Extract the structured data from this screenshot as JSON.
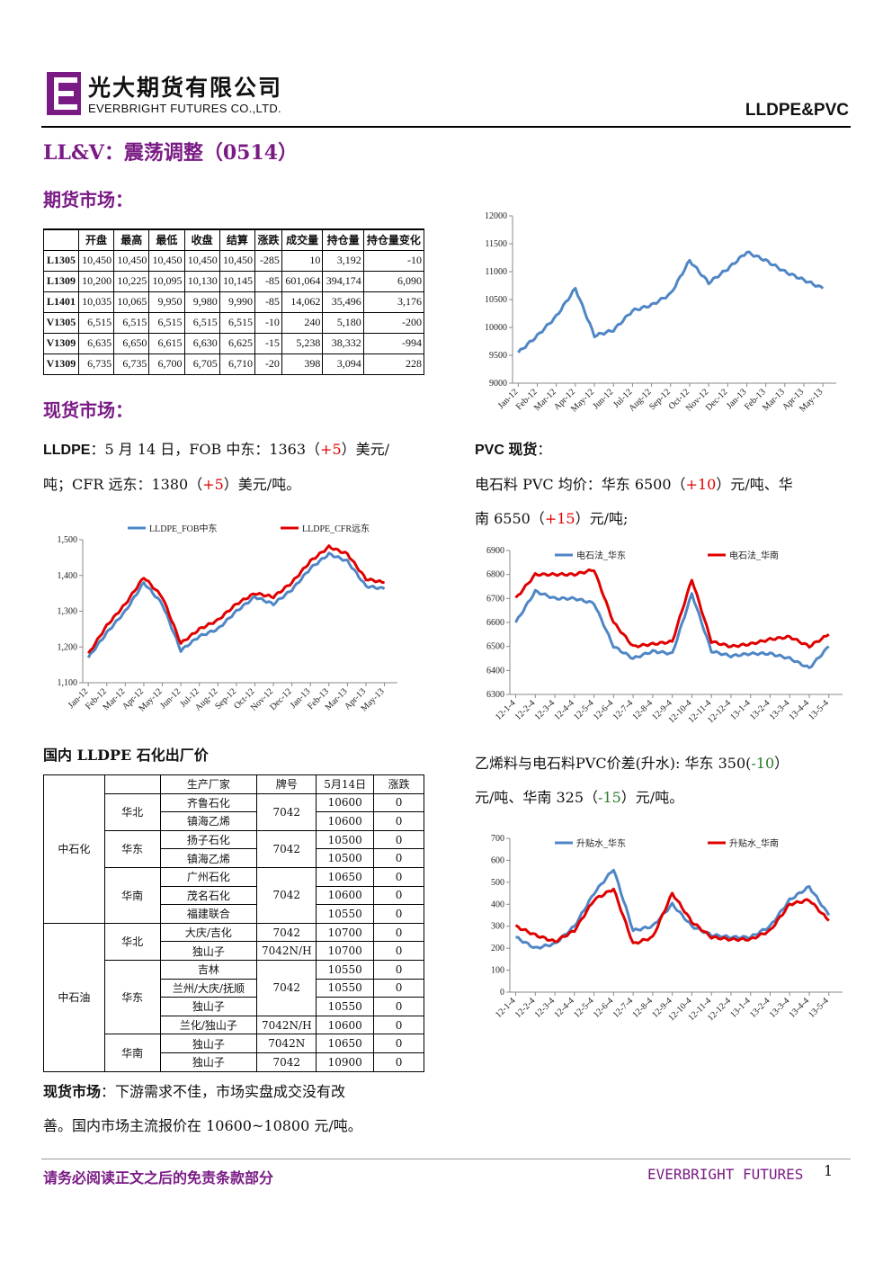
{
  "header": {
    "company_cn": "光大期货有限公司",
    "company_en": "EVERBRIGHT FUTURES CO.,LTD.",
    "product": "LLDPE&PVC"
  },
  "title": "LL&V：震荡调整（0514）",
  "futures": {
    "section_title": "期货市场：",
    "columns": [
      "",
      "开盘",
      "最高",
      "最低",
      "收盘",
      "结算",
      "涨跌",
      "成交量",
      "持仓量",
      "持仓量变化"
    ],
    "rows": [
      [
        "L1305",
        "10,450",
        "10,450",
        "10,450",
        "10,450",
        "10,450",
        "-285",
        "10",
        "3,192",
        "-10"
      ],
      [
        "L1309",
        "10,200",
        "10,225",
        "10,095",
        "10,130",
        "10,145",
        "-85",
        "601,064",
        "394,174",
        "6,090"
      ],
      [
        "L1401",
        "10,035",
        "10,065",
        "9,950",
        "9,980",
        "9,990",
        "-85",
        "14,062",
        "35,496",
        "3,176"
      ],
      [
        "V1305",
        "6,515",
        "6,515",
        "6,515",
        "6,515",
        "6,515",
        "-10",
        "240",
        "5,180",
        "-200"
      ],
      [
        "V1309",
        "6,635",
        "6,650",
        "6,615",
        "6,630",
        "6,625",
        "-15",
        "5,238",
        "38,332",
        "-994"
      ],
      [
        "V1309",
        "6,735",
        "6,735",
        "6,700",
        "6,705",
        "6,710",
        "-20",
        "398",
        "3,094",
        "228"
      ]
    ]
  },
  "spot": {
    "section_title": "现货市场：",
    "lldpe": {
      "label": "LLDPE",
      "line1_a": "：5 月 14 日，FOB 中东：1363（",
      "line1_b": "+5",
      "line1_c": "）美元/",
      "line2_a": "吨；CFR 远东：1380（",
      "line2_b": "+5",
      "line2_c": "）美元/吨。"
    },
    "pvc": {
      "label": "PVC 现货",
      "label_suffix": "：",
      "line1_a": "电石料 PVC 均价：华东 6500（",
      "line1_b": "+10",
      "line1_c": "）元/吨、华",
      "line2_a": "南 6550（",
      "line2_b": "+15",
      "line2_c": "）元/吨;"
    },
    "spread": {
      "line1_a": "乙烯料与电石料PVC价差(升水): 华东 350(",
      "line1_b": "-10",
      "line1_c": "）",
      "line2_a": "元/吨、华南 325（",
      "line2_b": "-15",
      "line2_c": "）元/吨。"
    }
  },
  "plants": {
    "title": "国内 LLDPE 石化出厂价",
    "columns": [
      "生产厂家",
      "牌号",
      "5月14日",
      "涨跌"
    ],
    "groups": {
      "sinopec": "中石化",
      "petrochina": "中石油"
    },
    "regions": {
      "north": "华北",
      "east": "华东",
      "south": "华南"
    },
    "rows": [
      {
        "plant": "齐鲁石化",
        "grade": "7042",
        "price": "10600",
        "chg": "0"
      },
      {
        "plant": "镇海乙烯",
        "grade": "",
        "price": "10600",
        "chg": "0"
      },
      {
        "plant": "扬子石化",
        "grade": "7042",
        "price": "10500",
        "chg": "0"
      },
      {
        "plant": "镇海乙烯",
        "grade": "",
        "price": "10500",
        "chg": "0"
      },
      {
        "plant": "广州石化",
        "grade": "",
        "price": "10650",
        "chg": "0"
      },
      {
        "plant": "茂名石化",
        "grade": "7042",
        "price": "10600",
        "chg": "0"
      },
      {
        "plant": "福建联合",
        "grade": "",
        "price": "10550",
        "chg": "0"
      },
      {
        "plant": "大庆/吉化",
        "grade": "7042",
        "price": "10700",
        "chg": "0"
      },
      {
        "plant": "独山子",
        "grade": "7042N/H",
        "price": "10700",
        "chg": "0"
      },
      {
        "plant": "吉林",
        "grade": "",
        "price": "10550",
        "chg": "0"
      },
      {
        "plant": "兰州/大庆/抚顺",
        "grade": "7042",
        "price": "10550",
        "chg": "0"
      },
      {
        "plant": "独山子",
        "grade": "",
        "price": "10550",
        "chg": "0"
      },
      {
        "plant": "兰化/独山子",
        "grade": "7042N/H",
        "price": "10600",
        "chg": "0"
      },
      {
        "plant": "独山子",
        "grade": "7042N",
        "price": "10650",
        "chg": "0"
      },
      {
        "plant": "独山子",
        "grade": "7042",
        "price": "10900",
        "chg": "0"
      }
    ]
  },
  "commentary": {
    "label": "现货市场",
    "text1": "：下游需求不佳，市场实盘成交没有改",
    "text2": "善。国内市场主流报价在 10600~10800 元/吨。"
  },
  "footer": {
    "disclaimer": "请务必阅读正文之后的免责条款部分",
    "brand": "EVERBRIGHT FUTURES",
    "page": "1"
  },
  "chart_data": [
    {
      "type": "line",
      "title": "",
      "x": [
        "Jan-12",
        "Feb-12",
        "Mar-12",
        "Apr-12",
        "May-12",
        "Jun-12",
        "Jul-12",
        "Aug-12",
        "Sep-12",
        "Oct-12",
        "Nov-12",
        "Dec-12",
        "Jan-13",
        "Feb-13",
        "Mar-13",
        "Apr-13",
        "May-13"
      ],
      "series": [
        {
          "name": "",
          "color": "#4f86c6",
          "values": [
            9550,
            9850,
            10200,
            10700,
            9850,
            9950,
            10300,
            10400,
            10600,
            11200,
            10800,
            11050,
            11350,
            11200,
            11000,
            10850,
            10700
          ]
        }
      ],
      "ylim": [
        9000,
        12000
      ],
      "yticks": [
        9000,
        9500,
        10000,
        10500,
        11000,
        11500,
        12000
      ]
    },
    {
      "type": "line",
      "title": "",
      "x": [
        "Jan-12",
        "Feb-12",
        "Mar-12",
        "Apr-12",
        "May-12",
        "Jun-12",
        "Jul-12",
        "Aug-12",
        "Sep-12",
        "Oct-12",
        "Nov-12",
        "Dec-12",
        "Jan-13",
        "Feb-13",
        "Mar-13",
        "Apr-13",
        "May-13"
      ],
      "series": [
        {
          "name": "LLDPE_FOB中东",
          "color": "#4f86c6",
          "values": [
            1170,
            1240,
            1300,
            1380,
            1320,
            1190,
            1230,
            1250,
            1300,
            1340,
            1320,
            1360,
            1420,
            1460,
            1440,
            1370,
            1363
          ]
        },
        {
          "name": "LLDPE_CFR远东",
          "color": "#e00000",
          "values": [
            1180,
            1260,
            1320,
            1395,
            1340,
            1210,
            1250,
            1275,
            1320,
            1350,
            1340,
            1380,
            1440,
            1480,
            1460,
            1390,
            1380
          ]
        }
      ],
      "ylim": [
        1100,
        1500
      ],
      "yticks": [
        1100,
        1200,
        1300,
        1400,
        1500
      ]
    },
    {
      "type": "line",
      "title": "",
      "x": [
        "12-1-4",
        "12-2-4",
        "12-3-4",
        "12-4-4",
        "12-5-4",
        "12-6-4",
        "12-7-4",
        "12-8-4",
        "12-9-4",
        "12-10-4",
        "12-11-4",
        "12-12-4",
        "13-1-4",
        "13-2-4",
        "13-3-4",
        "13-4-4",
        "13-5-4"
      ],
      "series": [
        {
          "name": "电石法_华东",
          "color": "#4f86c6",
          "values": [
            6600,
            6730,
            6700,
            6700,
            6680,
            6500,
            6450,
            6480,
            6470,
            6720,
            6480,
            6460,
            6470,
            6470,
            6450,
            6410,
            6500
          ]
        },
        {
          "name": "电石法_华南",
          "color": "#e00000",
          "values": [
            6700,
            6800,
            6800,
            6800,
            6820,
            6600,
            6500,
            6510,
            6520,
            6780,
            6520,
            6500,
            6510,
            6530,
            6540,
            6500,
            6550
          ]
        }
      ],
      "ylim": [
        6300,
        6900
      ],
      "yticks": [
        6300,
        6400,
        6500,
        6600,
        6700,
        6800,
        6900
      ]
    },
    {
      "type": "line",
      "title": "",
      "x": [
        "12-1-4",
        "12-2-4",
        "12-3-4",
        "12-4-4",
        "12-5-4",
        "12-6-4",
        "12-7-4",
        "12-8-4",
        "12-9-4",
        "12-10-4",
        "12-11-4",
        "12-12-4",
        "13-1-4",
        "13-2-4",
        "13-3-4",
        "13-4-4",
        "13-5-4"
      ],
      "series": [
        {
          "name": "升贴水_华东",
          "color": "#4f86c6",
          "values": [
            250,
            200,
            220,
            300,
            450,
            560,
            280,
            300,
            400,
            300,
            260,
            250,
            250,
            300,
            420,
            480,
            350
          ]
        },
        {
          "name": "升贴水_华南",
          "color": "#e00000",
          "values": [
            300,
            260,
            230,
            280,
            420,
            470,
            220,
            250,
            450,
            320,
            250,
            240,
            240,
            280,
            400,
            420,
            325
          ]
        }
      ],
      "ylim": [
        0,
        700
      ],
      "yticks": [
        0,
        100,
        200,
        300,
        400,
        500,
        600,
        700
      ]
    }
  ]
}
